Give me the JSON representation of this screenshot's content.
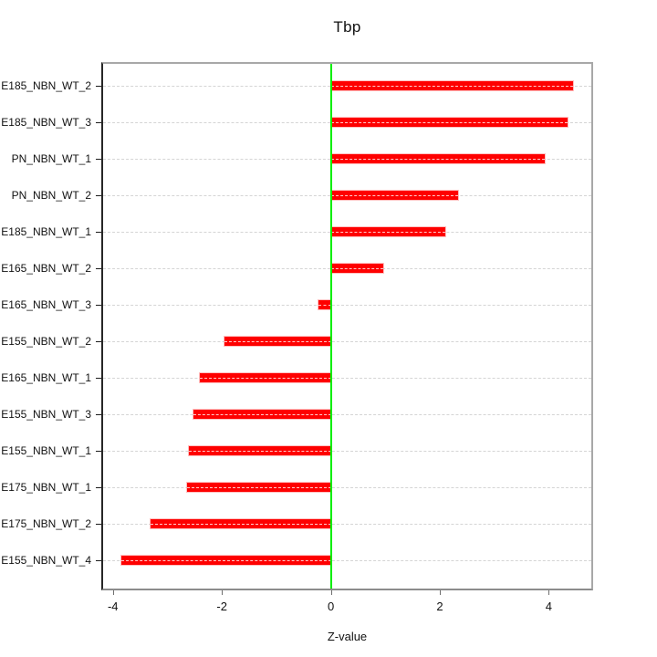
{
  "chart_data": {
    "type": "bar",
    "orientation": "horizontal",
    "title": "Tbp",
    "xlabel": "Z-value",
    "ylabel": "",
    "categories": [
      "E185_NBN_WT_2",
      "E185_NBN_WT_3",
      "PN_NBN_WT_1",
      "PN_NBN_WT_2",
      "E185_NBN_WT_1",
      "E165_NBN_WT_2",
      "E165_NBN_WT_3",
      "E155_NBN_WT_2",
      "E165_NBN_WT_1",
      "E155_NBN_WT_3",
      "E155_NBN_WT_1",
      "E175_NBN_WT_1",
      "E175_NBN_WT_2",
      "E155_NBN_WT_4"
    ],
    "values": [
      4.45,
      4.34,
      3.92,
      2.34,
      2.1,
      0.97,
      -0.22,
      -1.95,
      -2.41,
      -2.53,
      -2.6,
      -2.64,
      -3.31,
      -3.85
    ],
    "xlim": [
      -4.18,
      4.78
    ],
    "xticks": [
      -4,
      -2,
      0,
      2,
      4
    ],
    "xtick_labels": [
      "-4",
      "-2",
      "0",
      "2",
      "4"
    ],
    "grid": "dashed horizontal per category",
    "legend": "none",
    "colors": {
      "bar": "#fe0000",
      "zero_line": "#00ee00",
      "grid_line": "#d4d4d4",
      "box_top_right": "#a8a8a8",
      "box_bottom": "#8c8c8c",
      "axis_left": "#262626",
      "text": "#111111",
      "background": "#ffffff"
    }
  }
}
